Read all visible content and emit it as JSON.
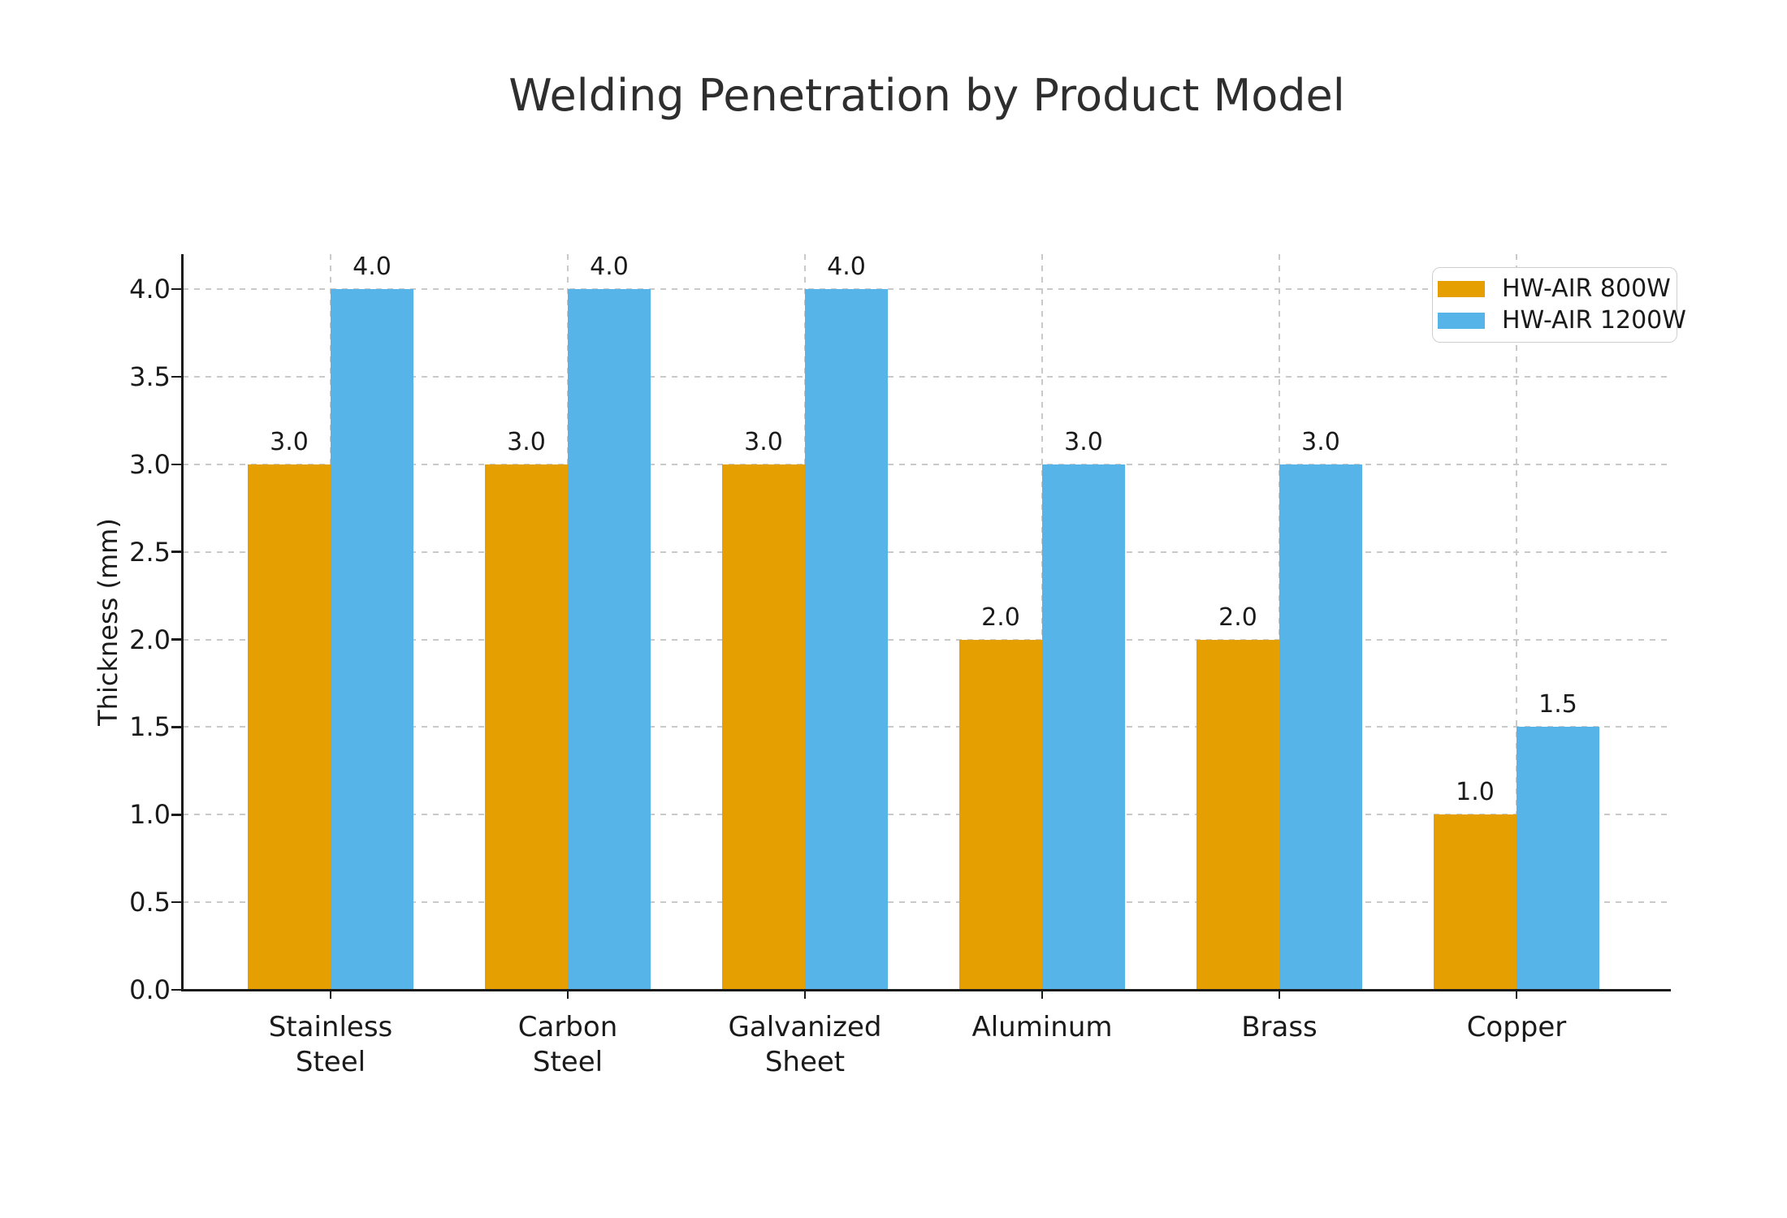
{
  "chart_data": {
    "type": "bar",
    "title": "Welding Penetration by Product Model",
    "xlabel": "",
    "ylabel": "Thickness (mm)",
    "categories": [
      "Stainless\nSteel",
      "Carbon\nSteel",
      "Galvanized\nSheet",
      "Aluminum",
      "Brass",
      "Copper"
    ],
    "series": [
      {
        "name": "HW-AIR 800W",
        "color": "#E69F00",
        "values": [
          3.0,
          3.0,
          3.0,
          2.0,
          2.0,
          1.0
        ],
        "value_labels": [
          "3.0",
          "3.0",
          "3.0",
          "2.0",
          "2.0",
          "1.0"
        ]
      },
      {
        "name": "HW-AIR 1200W",
        "color": "#56B4E9",
        "values": [
          4.0,
          4.0,
          4.0,
          3.0,
          3.0,
          1.5
        ],
        "value_labels": [
          "4.0",
          "4.0",
          "4.0",
          "3.0",
          "3.0",
          "1.5"
        ]
      }
    ],
    "yticks": [
      0.0,
      0.5,
      1.0,
      1.5,
      2.0,
      2.5,
      3.0,
      3.5,
      4.0
    ],
    "ytick_labels": [
      "0.0",
      "0.5",
      "1.0",
      "1.5",
      "2.0",
      "2.5",
      "3.0",
      "3.5",
      "4.0"
    ],
    "ylim": [
      0,
      4.2
    ],
    "grid": "dashed-both-axes",
    "legend_position": "upper-right",
    "colors": {
      "axis": "#1a1a1a",
      "gridline": "#c9c9c9",
      "title_text": "#2e2e2e",
      "tick_text": "#1a1a1a",
      "legend_border": "#cfcfcf",
      "background": "#ffffff"
    }
  }
}
